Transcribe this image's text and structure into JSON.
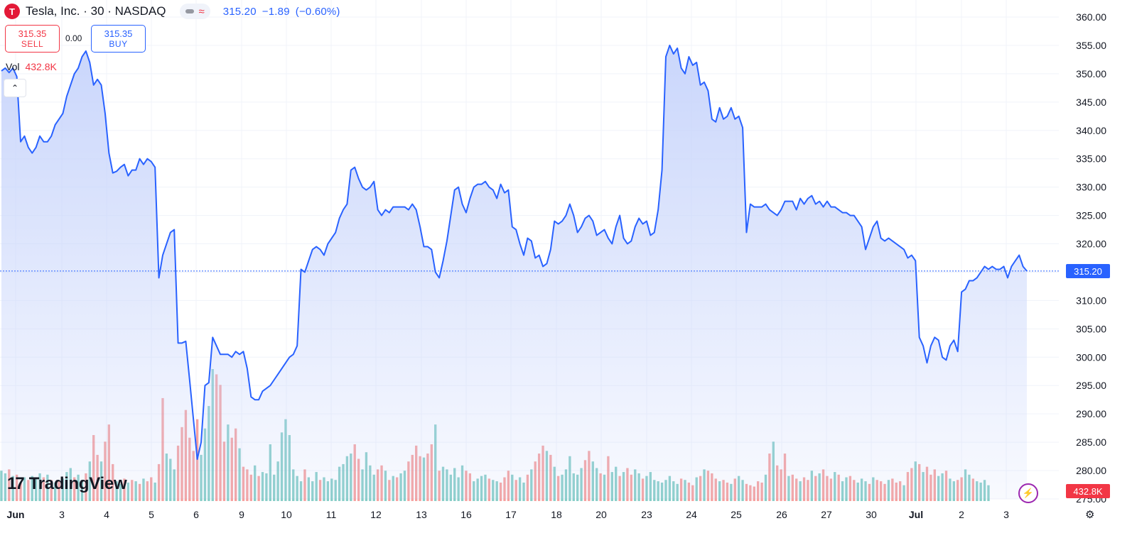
{
  "header": {
    "logo_letter": "T",
    "symbol_title": "Tesla, Inc. · 30 · NASDAQ",
    "last_price": "315.20",
    "change": "−1.89",
    "change_pct": "(−0.60%)"
  },
  "trade": {
    "sell_price": "315.35",
    "sell_label": "SELL",
    "spread": "0.00",
    "buy_price": "315.35",
    "buy_label": "BUY"
  },
  "volume_legend": {
    "label": "Vol",
    "value": "432.8K"
  },
  "brand": {
    "mark": "17",
    "name": "TradingView"
  },
  "price_tag": "315.20",
  "volume_tag": "432.8K",
  "colors": {
    "line": "#2962ff",
    "fill": "#c7d4fb",
    "vol_up": "#26a69a",
    "vol_down": "#ef5350"
  },
  "chart_data": {
    "type": "area",
    "title": "Tesla, Inc. · 30 · NASDAQ",
    "ylim": [
      275,
      360
    ],
    "y_ticks": [
      "275.00",
      "280.00",
      "285.00",
      "290.00",
      "295.00",
      "300.00",
      "305.00",
      "310.00",
      "315.00",
      "320.00",
      "325.00",
      "330.00",
      "335.00",
      "340.00",
      "345.00",
      "350.00",
      "355.00",
      "360.00"
    ],
    "x_tick_labels": [
      "Jun",
      "3",
      "4",
      "5",
      "6",
      "9",
      "10",
      "11",
      "12",
      "13",
      "16",
      "17",
      "18",
      "20",
      "23",
      "24",
      "25",
      "26",
      "27",
      "30",
      "Jul",
      "2",
      "3"
    ],
    "current_price": 315.2,
    "grid": true,
    "series": [
      {
        "values": [
          350.5,
          351,
          350.2,
          351,
          349.5,
          338,
          339,
          337,
          336,
          337,
          339,
          338,
          338,
          339,
          341,
          342,
          343,
          346,
          348,
          350,
          351,
          353,
          354,
          352,
          348,
          349,
          348,
          343,
          336,
          332.5,
          332.8,
          333.5,
          334,
          332,
          333,
          333,
          335,
          334,
          335,
          334.5,
          333.5,
          314,
          318,
          320,
          322,
          322.5,
          302.5,
          302.5,
          302.8,
          296,
          289,
          282,
          285,
          295,
          295.5,
          303.5,
          302,
          300.5,
          300.5,
          300.5,
          300,
          301,
          300.5,
          301,
          298,
          293,
          292.5,
          292.5,
          294,
          294.5,
          295,
          296,
          297,
          298,
          299,
          300,
          300.5,
          302,
          315.5,
          315,
          317,
          319,
          319.5,
          319,
          318,
          320,
          321,
          322,
          324.5,
          326,
          327,
          333,
          333.5,
          331.5,
          330,
          329.5,
          330,
          331,
          326,
          325,
          326,
          325.5,
          326.5,
          326.5,
          326.5,
          326.5,
          326,
          327,
          326,
          323,
          319.5,
          319.5,
          319,
          315,
          314,
          317,
          320.5,
          325,
          329.5,
          330,
          327,
          325.5,
          328,
          330,
          330.5,
          330.5,
          331,
          330,
          329.5,
          328,
          330.5,
          329,
          329.5,
          323,
          322.5,
          320,
          318,
          321,
          320.5,
          317.5,
          318,
          316,
          316.5,
          319,
          324,
          323.5,
          324,
          325,
          327,
          325,
          322,
          323,
          324.5,
          325,
          324,
          321.5,
          322,
          322.5,
          321,
          320,
          323,
          325,
          321,
          320,
          320.5,
          323,
          324.5,
          323.5,
          324,
          321.5,
          322,
          326,
          333,
          353,
          355,
          353.5,
          354.5,
          351,
          350,
          353,
          351.5,
          352,
          348,
          348.5,
          347,
          342,
          341.5,
          344,
          342,
          342.5,
          344,
          342,
          342.5,
          340.5,
          322,
          327,
          326.5,
          326.5,
          326.5,
          327,
          326,
          325.5,
          325,
          326,
          327.5,
          327.5,
          327.5,
          326,
          328,
          327,
          328,
          328.5,
          327,
          327.5,
          326.5,
          327.5,
          326.5,
          326.5,
          326,
          325.5,
          325.5,
          325,
          325,
          324,
          323,
          319,
          321,
          323,
          324,
          321,
          320.5,
          321,
          320.5,
          320,
          319.5,
          319,
          317.5,
          318,
          317,
          303.5,
          302,
          299,
          302,
          303.5,
          303,
          300,
          299.5,
          302,
          303,
          301,
          311.5,
          312,
          313.5,
          313.5,
          314,
          315,
          316,
          315.5,
          316,
          315.5,
          315.5,
          316,
          314,
          316,
          317,
          318,
          316,
          315.2
        ]
      }
    ],
    "volume": {
      "values": [
        2.3,
        2.1,
        2.4,
        1.9,
        2.0,
        1.4,
        1.8,
        1.6,
        1.9,
        1.7,
        2.1,
        1.8,
        2.0,
        1.6,
        1.4,
        1.5,
        1.7,
        2.2,
        2.5,
        1.8,
        2.0,
        1.6,
        2.1,
        3.0,
        5.0,
        3.5,
        3.0,
        4.5,
        5.8,
        2.8,
        1.5,
        1.3,
        1.7,
        1.4,
        1.6,
        1.5,
        1.3,
        1.7,
        1.5,
        1.8,
        1.4,
        2.8,
        7.8,
        3.6,
        3.2,
        2.4,
        4.2,
        5.6,
        6.9,
        4.8,
        3.8,
        6.2,
        3.5,
        5.5,
        7.2,
        10.0,
        9.6,
        8.8,
        4.5,
        5.8,
        4.8,
        5.5,
        4.0,
        2.6,
        2.4,
        2.0,
        2.7,
        1.9,
        2.2,
        2.1,
        4.3,
        2.0,
        3.0,
        5.2,
        6.2,
        5.0,
        2.4,
        1.9,
        1.5,
        2.4,
        1.8,
        1.5,
        2.2,
        1.6,
        1.8,
        1.5,
        1.7,
        1.6,
        2.6,
        2.8,
        3.4,
        3.6,
        4.3,
        3.2,
        2.4,
        3.7,
        2.7,
        2.0,
        2.4,
        2.7,
        2.3,
        1.6,
        1.9,
        1.8,
        2.1,
        2.3,
        3.0,
        3.5,
        4.2,
        3.4,
        3.3,
        3.6,
        4.3,
        5.8,
        2.3,
        2.6,
        2.4,
        2.0,
        2.5,
        1.8,
        2.7,
        2.3,
        2.1,
        1.5,
        1.7,
        1.9,
        2.0,
        1.7,
        1.6,
        1.5,
        1.4,
        1.8,
        2.3,
        2.0,
        1.6,
        1.8,
        1.4,
        2.0,
        2.4,
        3.0,
        3.6,
        4.2,
        3.8,
        3.5,
        2.6,
        1.9,
        2.0,
        2.4,
        3.4,
        2.1,
        2.0,
        2.5,
        3.1,
        3.8,
        3.0,
        2.5,
        2.1,
        2.0,
        3.4,
        2.2,
        2.6,
        1.9,
        2.2,
        2.5,
        2.0,
        2.4,
        2.1,
        1.7,
        1.9,
        2.2,
        1.6,
        1.5,
        1.4,
        1.6,
        1.9,
        1.5,
        1.3,
        1.7,
        1.6,
        1.4,
        1.2,
        1.8,
        1.9,
        2.4,
        2.3,
        2.1,
        1.7,
        1.5,
        1.6,
        1.4,
        1.3,
        1.7,
        1.9,
        1.6,
        1.3,
        1.2,
        1.1,
        1.5,
        1.4,
        2.0,
        3.6,
        4.5,
        2.7,
        2.4,
        3.6,
        1.9,
        2.0,
        1.7,
        1.5,
        1.8,
        1.6,
        2.3,
        1.9,
        2.1,
        2.4,
        1.9,
        1.7,
        2.2,
        2.0,
        1.5,
        1.8,
        1.9,
        1.6,
        1.4,
        1.7,
        1.5,
        1.3,
        1.8,
        1.6,
        1.5,
        1.3,
        1.6,
        1.7,
        1.4,
        1.5,
        1.2,
        2.2,
        2.5,
        3.0,
        2.8,
        2.2,
        2.6,
        2.0,
        2.4,
        1.9,
        2.1,
        2.3,
        1.7,
        1.5,
        1.6,
        1.8,
        2.4,
        2.0,
        1.7,
        1.5,
        1.4,
        1.6,
        1.2
      ],
      "direction": [
        1,
        1,
        0,
        1,
        0,
        0,
        1,
        0,
        1,
        1,
        1,
        0,
        1,
        0,
        1,
        0,
        1,
        1,
        1,
        0,
        1,
        1,
        0,
        1,
        0,
        0,
        1,
        0,
        0,
        0,
        1,
        1,
        0,
        1,
        0,
        1,
        0,
        1,
        0,
        0,
        1,
        0,
        0,
        1,
        1,
        1,
        0,
        0,
        0,
        0,
        0,
        0,
        1,
        1,
        1,
        1,
        0,
        0,
        0,
        1,
        0,
        0,
        1,
        0,
        0,
        0,
        1,
        0,
        1,
        1,
        1,
        1,
        1,
        1,
        1,
        1,
        1,
        1,
        1,
        0,
        1,
        1,
        1,
        0,
        1,
        1,
        1,
        1,
        1,
        1,
        1,
        1,
        0,
        0,
        1,
        1,
        1,
        1,
        0,
        0,
        1,
        0,
        1,
        0,
        1,
        1,
        0,
        0,
        0,
        0,
        1,
        0,
        0,
        1,
        0,
        1,
        1,
        1,
        1,
        1,
        1,
        0,
        0,
        1,
        1,
        1,
        1,
        0,
        1,
        1,
        0,
        0,
        0,
        1,
        0,
        1,
        1,
        0,
        1,
        0,
        0,
        0,
        1,
        0,
        1,
        0,
        1,
        1,
        1,
        1,
        1,
        1,
        0,
        0,
        1,
        1,
        0,
        1,
        0,
        1,
        1,
        0,
        1,
        0,
        0,
        1,
        1,
        0,
        1,
        1,
        1,
        1,
        1,
        1,
        1,
        1,
        1,
        0,
        1,
        0,
        0,
        1,
        0,
        1,
        0,
        0,
        0,
        1,
        0,
        0,
        1,
        0,
        1,
        1,
        0,
        0,
        0,
        0,
        0,
        1,
        0,
        1,
        0,
        0,
        0,
        1,
        0,
        0,
        1,
        0,
        0,
        1,
        0,
        1,
        0,
        0,
        0,
        1,
        0,
        1,
        1,
        0,
        0,
        1,
        1,
        1,
        0,
        1,
        0,
        0,
        0,
        1,
        0,
        0,
        0,
        1,
        0,
        0,
        1,
        0,
        1,
        0,
        0,
        0,
        1,
        1,
        0,
        1,
        1,
        0,
        0,
        1,
        1,
        0,
        1,
        1,
        1,
        1,
        0,
        1,
        1,
        1,
        0,
        0,
        1,
        0
      ]
    }
  }
}
